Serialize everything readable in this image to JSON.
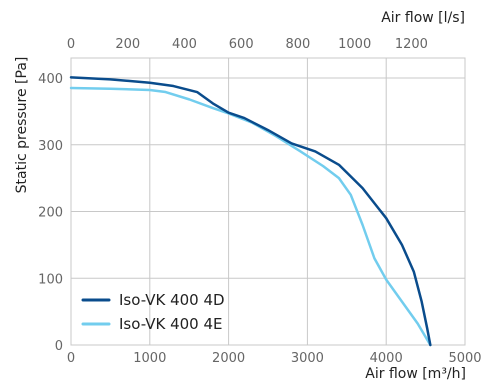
{
  "chart_data": {
    "type": "line",
    "top_axis": {
      "title": "Air flow [l/s]",
      "ticks": [
        "0",
        "200",
        "400",
        "600",
        "800",
        "1000",
        "1200"
      ],
      "range": [
        0,
        1388.9
      ]
    },
    "bottom_axis": {
      "title": "Air flow [m³/h]",
      "ticks": [
        "0",
        "1000",
        "2000",
        "3000",
        "4000",
        "5000"
      ],
      "range": [
        0,
        5000
      ]
    },
    "y_axis": {
      "title": "Static pressure [Pa]",
      "ticks": [
        "0",
        "100",
        "200",
        "300",
        "400"
      ],
      "range": [
        0,
        430
      ]
    },
    "grid": true,
    "legend_position": "bottom-left",
    "series": [
      {
        "name": "Iso-VK 400 4D",
        "color": "#0a4c8c",
        "points": [
          [
            0,
            401
          ],
          [
            500,
            398
          ],
          [
            1000,
            393
          ],
          [
            1300,
            388
          ],
          [
            1600,
            379
          ],
          [
            1800,
            362
          ],
          [
            2000,
            348
          ],
          [
            2200,
            340
          ],
          [
            2500,
            322
          ],
          [
            2800,
            302
          ],
          [
            3100,
            290
          ],
          [
            3400,
            270
          ],
          [
            3700,
            235
          ],
          [
            4000,
            190
          ],
          [
            4200,
            150
          ],
          [
            4350,
            110
          ],
          [
            4450,
            65
          ],
          [
            4520,
            25
          ],
          [
            4560,
            0
          ]
        ]
      },
      {
        "name": "Iso-VK 400 4E",
        "color": "#72cdee",
        "points": [
          [
            0,
            385
          ],
          [
            500,
            384
          ],
          [
            1000,
            382
          ],
          [
            1200,
            379
          ],
          [
            1500,
            368
          ],
          [
            1800,
            355
          ],
          [
            2000,
            347
          ],
          [
            2300,
            333
          ],
          [
            2600,
            313
          ],
          [
            2900,
            291
          ],
          [
            3200,
            268
          ],
          [
            3400,
            250
          ],
          [
            3550,
            225
          ],
          [
            3700,
            180
          ],
          [
            3850,
            130
          ],
          [
            4000,
            98
          ],
          [
            4200,
            65
          ],
          [
            4400,
            32
          ],
          [
            4560,
            0
          ]
        ]
      }
    ]
  }
}
